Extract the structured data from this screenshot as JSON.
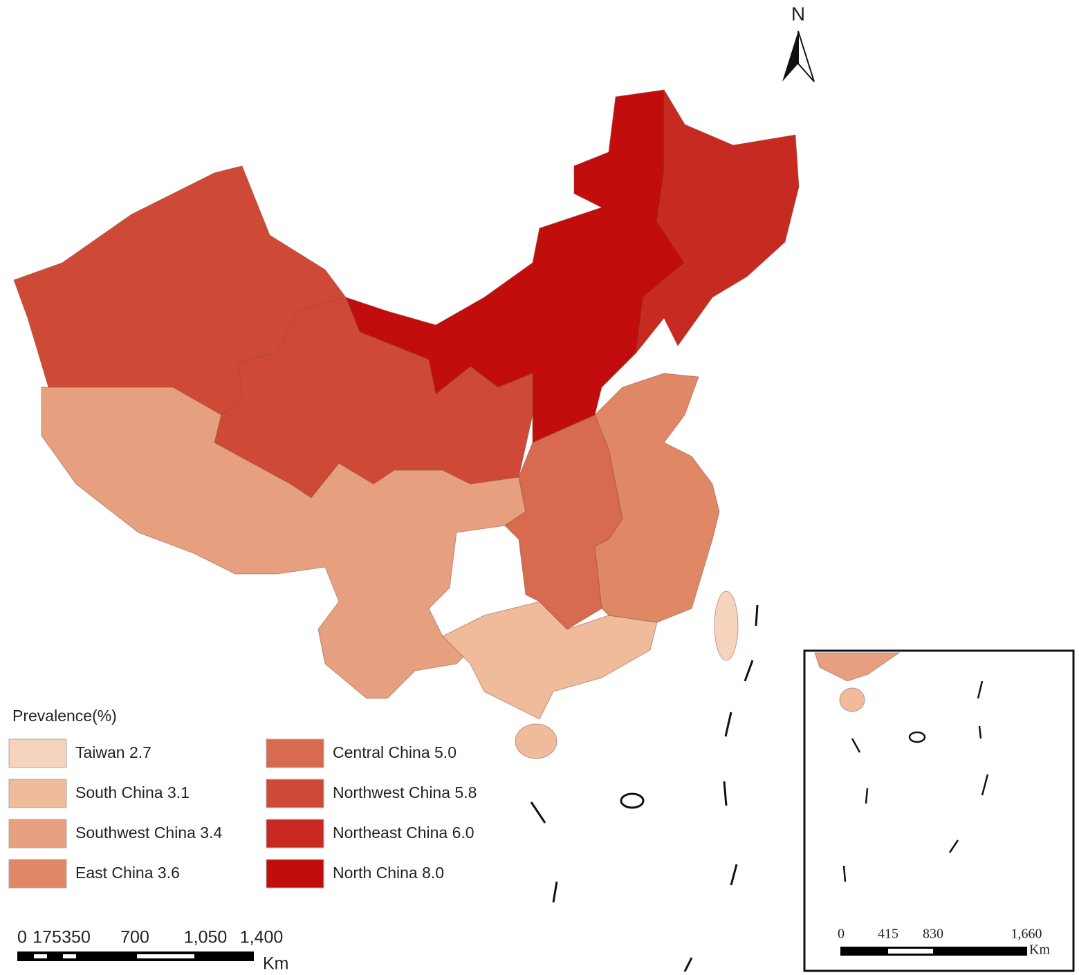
{
  "legend": {
    "title": "Prevalence(%)",
    "items": [
      {
        "label": "Taiwan 2.7",
        "color": "#f5d3bd"
      },
      {
        "label": "South China 3.1",
        "color": "#efbb9a"
      },
      {
        "label": "Southwest China 3.4",
        "color": "#e6a07f"
      },
      {
        "label": "East China 3.6",
        "color": "#e08766"
      },
      {
        "label": "Central China 5.0",
        "color": "#d86a50"
      },
      {
        "label": "Northwest China 5.8",
        "color": "#cf4a36"
      },
      {
        "label": "Northeast China 6.0",
        "color": "#c72a20"
      },
      {
        "label": "North China 8.0",
        "color": "#c20d0d"
      }
    ]
  },
  "north_arrow": "N",
  "scale_bar": {
    "labels": [
      "0",
      "175",
      "350",
      "700",
      "1,050",
      "1,400"
    ],
    "unit": "Km"
  },
  "inset_scale_bar": {
    "labels": [
      "0",
      "415",
      "830",
      "1,660"
    ],
    "unit": "Km"
  }
}
